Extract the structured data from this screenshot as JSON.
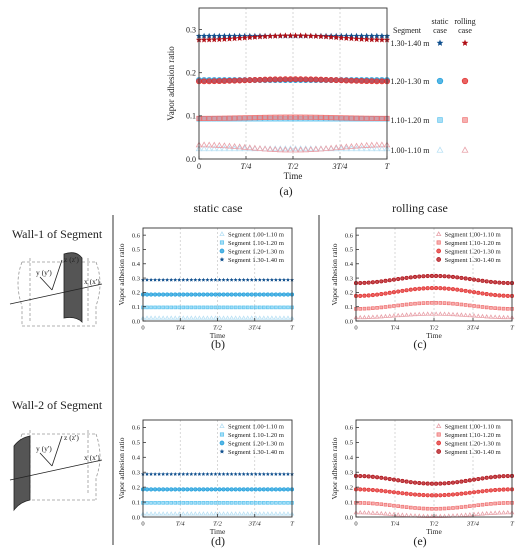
{
  "figure": {
    "label_a": "(a)",
    "col_static": "static case",
    "col_rolling": "rolling case",
    "wall1": "Wall-1 of Segment",
    "wall2": "Wall-2 of Segment",
    "axis_x": "x (x')",
    "axis_y": "y (y')",
    "axis_z": "z (z')"
  },
  "colors": {
    "s1": "#e8a0a8",
    "s2": "#ef6f6f",
    "s3": "#e2302f",
    "s4": "#b00f16",
    "b1": "#b8e0f4",
    "b2": "#5cc3ee",
    "b3": "#1f9fdc",
    "b4": "#0f4f8e",
    "vline": "#c7c7c7"
  },
  "chart_data": [
    {
      "id": "a",
      "type": "scatter",
      "xlabel": "Time",
      "ylabel": "Vapor adhesion ratio",
      "x_ticks": [
        "0",
        "T/4",
        "T/2",
        "3T/4",
        "T"
      ],
      "y_ticks": [
        "0.0",
        "0.1",
        "0.2",
        "0.3"
      ],
      "ylim": [
        0,
        0.35
      ],
      "legend": {
        "segment_header": "Segment",
        "static_header": "static case",
        "rolling_header": "rolling case",
        "rows": [
          {
            "label": "1.30-1.40 m"
          },
          {
            "label": "1.20-1.30 m"
          },
          {
            "label": "1.10-1.20 m"
          },
          {
            "label": "1.00-1.10 m"
          }
        ]
      },
      "series": [
        {
          "case": "static",
          "segment": "1.00-1.10 m",
          "level": 0.024,
          "amp": 0,
          "color": "b1",
          "marker": "triangle"
        },
        {
          "case": "rolling",
          "segment": "1.00-1.10 m",
          "level": 0.033,
          "amp": -0.012,
          "color": "s1",
          "marker": "triangle"
        },
        {
          "case": "static",
          "segment": "1.10-1.20 m",
          "level": 0.093,
          "amp": 0,
          "color": "b2",
          "marker": "square"
        },
        {
          "case": "rolling",
          "segment": "1.10-1.20 m",
          "level": 0.094,
          "amp": 0.003,
          "color": "s2",
          "marker": "square"
        },
        {
          "case": "static",
          "segment": "1.20-1.30 m",
          "level": 0.183,
          "amp": 0,
          "color": "b3",
          "marker": "circle"
        },
        {
          "case": "rolling",
          "segment": "1.20-1.30 m",
          "level": 0.18,
          "amp": 0.005,
          "color": "s3",
          "marker": "circle"
        },
        {
          "case": "static",
          "segment": "1.30-1.40 m",
          "level": 0.285,
          "amp": 0,
          "color": "b4",
          "marker": "star"
        },
        {
          "case": "rolling",
          "segment": "1.30-1.40 m",
          "level": 0.276,
          "amp": 0.01,
          "color": "s4",
          "marker": "star"
        }
      ]
    },
    {
      "id": "b",
      "type": "scatter",
      "label": "(b)",
      "xlabel": "Time",
      "ylabel": "Vapor adhesion ratio",
      "x_ticks": [
        "0",
        "T/4",
        "T/2",
        "3T/4",
        "T"
      ],
      "y_ticks": [
        "0.0",
        "0.1",
        "0.2",
        "0.3",
        "0.4",
        "0.5",
        "0.6"
      ],
      "ylim": [
        0,
        0.65
      ],
      "legend": [
        "Segment 1.00-1.10 m",
        "Segment 1.10-1.20 m",
        "Segment 1.20-1.30 m",
        "Segment 1.30-1.40 m"
      ],
      "series": [
        {
          "level": 0.022,
          "amp": 0,
          "color": "b1",
          "marker": "triangle"
        },
        {
          "level": 0.095,
          "amp": 0,
          "color": "b2",
          "marker": "square"
        },
        {
          "level": 0.185,
          "amp": 0,
          "color": "b3",
          "marker": "circle"
        },
        {
          "level": 0.287,
          "amp": 0,
          "color": "b4",
          "marker": "star"
        }
      ]
    },
    {
      "id": "c",
      "type": "scatter",
      "label": "(c)",
      "xlabel": "Time",
      "ylabel": "Vapor adhesion ratio",
      "x_ticks": [
        "0",
        "T/4",
        "T/2",
        "3T/4",
        "T"
      ],
      "y_ticks": [
        "0.0",
        "0.1",
        "0.2",
        "0.3",
        "0.4",
        "0.5",
        "0.6"
      ],
      "ylim": [
        0,
        0.65
      ],
      "legend": [
        "Segment 1.00-1.10 m",
        "Segment 1.10-1.20 m",
        "Segment 1.20-1.30 m",
        "Segment 1.30-1.40 m"
      ],
      "series": [
        {
          "level": 0.025,
          "amp": 0.025,
          "color": "s1",
          "marker": "triangle"
        },
        {
          "level": 0.085,
          "amp": 0.042,
          "color": "s2",
          "marker": "square"
        },
        {
          "level": 0.175,
          "amp": 0.055,
          "color": "s3",
          "marker": "circle"
        },
        {
          "level": 0.265,
          "amp": 0.05,
          "color": "s4",
          "marker": "circle"
        }
      ]
    },
    {
      "id": "d",
      "type": "scatter",
      "label": "(d)",
      "xlabel": "Time",
      "ylabel": "Vapor adhesion ratio",
      "x_ticks": [
        "0",
        "T/4",
        "T/2",
        "3T/4",
        "T"
      ],
      "y_ticks": [
        "0.0",
        "0.1",
        "0.2",
        "0.3",
        "0.4",
        "0.5",
        "0.6"
      ],
      "ylim": [
        0,
        0.65
      ],
      "legend": [
        "Segment 1.00-1.10 m",
        "Segment 1.10-1.20 m",
        "Segment 1.20-1.30 m",
        "Segment 1.30-1.40 m"
      ],
      "series": [
        {
          "level": 0.022,
          "amp": 0,
          "color": "b1",
          "marker": "triangle"
        },
        {
          "level": 0.095,
          "amp": 0,
          "color": "b2",
          "marker": "square"
        },
        {
          "level": 0.185,
          "amp": 0,
          "color": "b3",
          "marker": "circle"
        },
        {
          "level": 0.287,
          "amp": 0,
          "color": "b4",
          "marker": "star"
        }
      ]
    },
    {
      "id": "e",
      "type": "scatter",
      "label": "(e)",
      "xlabel": "Time",
      "ylabel": "Vapor adhesion ratio",
      "x_ticks": [
        "0",
        "T/4",
        "T/2",
        "3T/4",
        "T"
      ],
      "y_ticks": [
        "0.0",
        "0.1",
        "0.2",
        "0.3",
        "0.4",
        "0.5",
        "0.6"
      ],
      "ylim": [
        0,
        0.65
      ],
      "legend": [
        "Segment 1.00-1.10 m",
        "Segment 1.10-1.20 m",
        "Segment 1.20-1.30 m",
        "Segment 1.30-1.40 m"
      ],
      "series": [
        {
          "level": 0.03,
          "amp": -0.025,
          "color": "s1",
          "marker": "triangle"
        },
        {
          "level": 0.095,
          "amp": -0.04,
          "color": "s2",
          "marker": "square"
        },
        {
          "level": 0.185,
          "amp": -0.04,
          "color": "s3",
          "marker": "circle"
        },
        {
          "level": 0.275,
          "amp": -0.052,
          "color": "s4",
          "marker": "circle"
        }
      ]
    }
  ]
}
